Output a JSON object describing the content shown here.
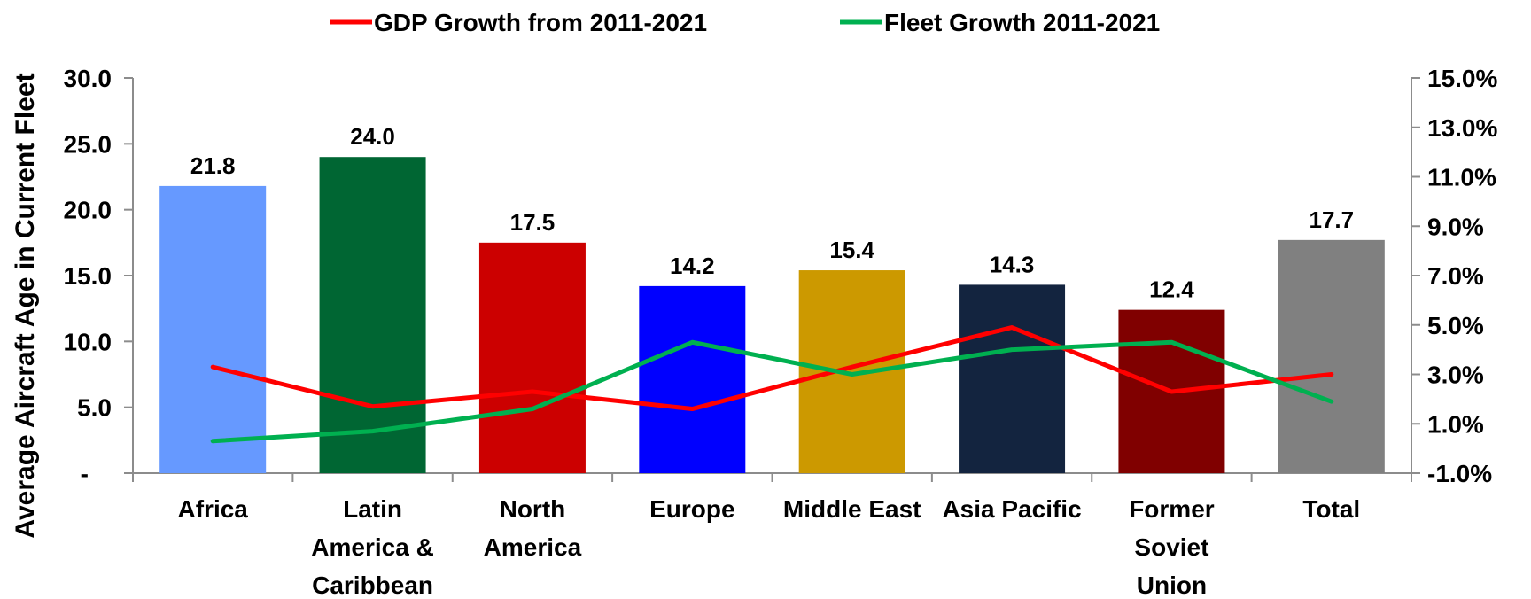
{
  "chart_data": {
    "type": "bar",
    "title": "",
    "categories": [
      [
        "Africa"
      ],
      [
        "Latin",
        "America &",
        "Caribbean"
      ],
      [
        "North",
        "America"
      ],
      [
        "Europe"
      ],
      [
        "Middle East"
      ],
      [
        "Asia Pacific"
      ],
      [
        "Former",
        "Soviet",
        "Union"
      ],
      [
        "Total"
      ]
    ],
    "bar_series": {
      "values": [
        21.8,
        24.0,
        17.5,
        14.2,
        15.4,
        14.3,
        12.4,
        17.7
      ],
      "value_labels": [
        "21.8",
        "24.0",
        "17.5",
        "14.2",
        "15.4",
        "14.3",
        "12.4",
        "17.7"
      ],
      "colors": [
        "#6699FF",
        "#006633",
        "#CC0000",
        "#0000FF",
        "#CC9900",
        "#13243F",
        "#800000",
        "#808080"
      ]
    },
    "line_series": [
      {
        "name": "GDP Growth from 2011-2021",
        "color": "#FF0000",
        "values": [
          3.3,
          1.7,
          2.3,
          1.6,
          3.3,
          4.9,
          2.3,
          3.0
        ]
      },
      {
        "name": "Fleet Growth 2011-2021",
        "color": "#00B050",
        "values": [
          0.3,
          0.7,
          1.6,
          4.3,
          3.0,
          4.0,
          4.3,
          1.9
        ]
      }
    ],
    "ylabel": "Average Aircraft Age in Current Fleet",
    "ylim": [
      0,
      30
    ],
    "y_ticks": [
      "-",
      "5.0",
      "10.0",
      "15.0",
      "20.0",
      "25.0",
      "30.0"
    ],
    "y2lim": [
      -1.0,
      15.0
    ],
    "y2_ticks": [
      "-1.0%",
      "1.0%",
      "3.0%",
      "5.0%",
      "7.0%",
      "9.0%",
      "11.0%",
      "13.0%",
      "15.0%"
    ],
    "legend_position": "top-center",
    "grid": false
  }
}
